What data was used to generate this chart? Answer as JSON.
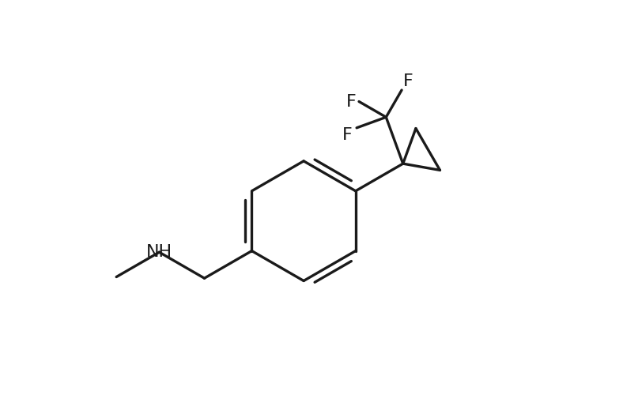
{
  "background_color": "#ffffff",
  "line_color": "#1a1a1a",
  "line_width": 2.4,
  "font_size": 16,
  "figsize": [
    7.88,
    5.0
  ],
  "dpi": 100,
  "xlim": [
    -4.0,
    5.5
  ],
  "ylim": [
    -3.5,
    4.0
  ]
}
